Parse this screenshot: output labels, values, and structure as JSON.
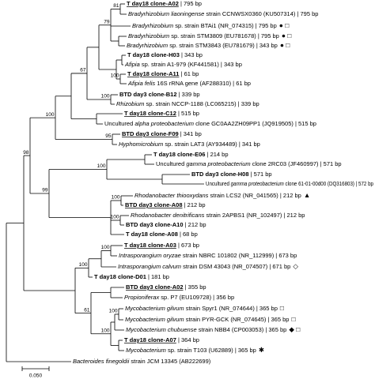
{
  "leaves": [
    {
      "parts": [
        {
          "text": "T day18 clone-A02",
          "style": "bold-underline"
        },
        {
          "text": " | 795 bp",
          "style": "plain"
        }
      ]
    },
    {
      "parts": [
        {
          "text": "Bradyrhizobium liaoningense",
          "style": "italic"
        },
        {
          "text": " strain CCNWSX0360 (KU507314) | 795 bp",
          "style": "plain"
        }
      ]
    },
    {
      "parts": [
        {
          "text": "Bradyrhizobium",
          "style": "italic"
        },
        {
          "text": " sp. strain BTAi1 (NR_074315) | 795 bp",
          "style": "plain"
        }
      ],
      "symbols": "● □"
    },
    {
      "parts": [
        {
          "text": "Bradyrhizobium",
          "style": "italic"
        },
        {
          "text": " sp. strain STM3809 (EU781678) | 795 bp",
          "style": "plain"
        }
      ],
      "symbols": "● □"
    },
    {
      "parts": [
        {
          "text": "Bradyrhizobium",
          "style": "italic"
        },
        {
          "text": " sp. strain STM3843 (EU781679) | 343 bp",
          "style": "plain"
        }
      ],
      "symbols": "● □"
    },
    {
      "parts": [
        {
          "text": "T day18 clone-H03",
          "style": "bold"
        },
        {
          "text": " | 343 bp",
          "style": "plain"
        }
      ]
    },
    {
      "parts": [
        {
          "text": "Afipia",
          "style": "italic"
        },
        {
          "text": " sp. strain A1-979 (KF441581) | 343 bp",
          "style": "plain"
        }
      ]
    },
    {
      "parts": [
        {
          "text": "T day18 clone-A11",
          "style": "bold-underline"
        },
        {
          "text": " | 61 bp",
          "style": "plain"
        }
      ]
    },
    {
      "parts": [
        {
          "text": "Afipia felis",
          "style": "italic"
        },
        {
          "text": " 16S rRNA gene (AF288310) | 61 bp",
          "style": "plain"
        }
      ]
    },
    {
      "parts": [
        {
          "text": "BTD day3 clone-B12",
          "style": "bold"
        },
        {
          "text": " | 339 bp",
          "style": "plain"
        }
      ]
    },
    {
      "parts": [
        {
          "text": "Rhizobium",
          "style": "italic"
        },
        {
          "text": " sp. strain NCCP-1188 (LC065215) | 339 bp",
          "style": "plain"
        }
      ]
    },
    {
      "parts": [
        {
          "text": "T day18 clone-C12",
          "style": "bold-underline"
        },
        {
          "text": " | 515 bp",
          "style": "plain"
        }
      ]
    },
    {
      "parts": [
        {
          "text": "Uncultured ",
          "style": "plain"
        },
        {
          "text": "alpha proteobacterium",
          "style": "italic"
        },
        {
          "text": " clone GC0AA2ZH09PP1 (JQ919505) | 515 bp",
          "style": "plain"
        }
      ]
    },
    {
      "parts": [
        {
          "text": "BTD day3 clone-F09",
          "style": "bold-underline"
        },
        {
          "text": " | 341 bp",
          "style": "plain"
        }
      ]
    },
    {
      "parts": [
        {
          "text": "Hyphomicrobium",
          "style": "italic"
        },
        {
          "text": " sp. strain LAT3 (AY934489) | 341 bp",
          "style": "plain"
        }
      ]
    },
    {
      "parts": [
        {
          "text": "T day18 clone-E06",
          "style": "bold"
        },
        {
          "text": " | 214 bp",
          "style": "plain"
        }
      ]
    },
    {
      "parts": [
        {
          "text": "Uncultured ",
          "style": "plain"
        },
        {
          "text": "gamma proteobacterium",
          "style": "italic"
        },
        {
          "text": " clone 2RC03 (JF460997) | 571 bp",
          "style": "plain"
        }
      ]
    },
    {
      "parts": [
        {
          "text": "BTD day3 clone-H08",
          "style": "bold"
        },
        {
          "text": " | 571 bp",
          "style": "plain"
        }
      ]
    },
    {
      "parts": [
        {
          "text": "Uncultured ",
          "style": "plain"
        },
        {
          "text": "gamma proteobacterium",
          "style": "italic"
        },
        {
          "text": " clone 61-01-00d00 (DQ316803) | 572 bp",
          "style": "plain"
        }
      ]
    },
    {
      "parts": [
        {
          "text": "Rhodanobacter thiooxydans",
          "style": "italic"
        },
        {
          "text": " strain LCS2 (NR_041565) | 212 bp",
          "style": "plain"
        }
      ],
      "symbols": "▲"
    },
    {
      "parts": [
        {
          "text": "BTD day3 clone-A08",
          "style": "bold-underline"
        },
        {
          "text": " | 212 bp",
          "style": "plain"
        }
      ]
    },
    {
      "parts": [
        {
          "text": "Rhodanobacter denitrificans",
          "style": "italic"
        },
        {
          "text": " strain 2APBS1 (NR_102497) | 212 bp",
          "style": "plain"
        }
      ]
    },
    {
      "parts": [
        {
          "text": "BTD day3 clone-A10",
          "style": "bold"
        },
        {
          "text": " | 212 bp",
          "style": "plain"
        }
      ]
    },
    {
      "parts": [
        {
          "text": "T day18 clone-A08",
          "style": "bold"
        },
        {
          "text": " | 68 bp",
          "style": "plain"
        }
      ]
    },
    {
      "parts": [
        {
          "text": "T day18 clone-A03",
          "style": "bold-underline"
        },
        {
          "text": " | 673 bp",
          "style": "plain"
        }
      ]
    },
    {
      "parts": [
        {
          "text": "Intrasporangium oryzae",
          "style": "italic"
        },
        {
          "text": " strain NBRC 101802 (NR_112999) | 673 bp",
          "style": "plain"
        }
      ]
    },
    {
      "parts": [
        {
          "text": "Intrasporangium calvum",
          "style": "italic"
        },
        {
          "text": " strain DSM 43043 (NR_074507) | 671 bp",
          "style": "plain"
        }
      ],
      "symbols": "◇"
    },
    {
      "parts": [
        {
          "text": "T day18 clone-D01",
          "style": "bold"
        },
        {
          "text": " | 181 bp",
          "style": "plain"
        }
      ]
    },
    {
      "parts": [
        {
          "text": "BTD day3 clone-A02",
          "style": "bold-underline"
        },
        {
          "text": " | 355 bp",
          "style": "plain"
        }
      ]
    },
    {
      "parts": [
        {
          "text": "Propioniferax",
          "style": "italic"
        },
        {
          "text": " sp. P7 (EU109728) | 356 bp",
          "style": "plain"
        }
      ]
    },
    {
      "parts": [
        {
          "text": "Mycobacterium gilvum",
          "style": "italic"
        },
        {
          "text": " strain Spyr1 (NR_074644) | 365 bp",
          "style": "plain"
        }
      ],
      "symbols": "□"
    },
    {
      "parts": [
        {
          "text": "Mycobacterium gilvum",
          "style": "italic"
        },
        {
          "text": " strain PYR-GCK (NR_074645) | 365 bp",
          "style": "plain"
        }
      ],
      "symbols": "□"
    },
    {
      "parts": [
        {
          "text": "Mycobacterium chubuense",
          "style": "italic"
        },
        {
          "text": " strain NBB4 (CP003053) | 365 bp",
          "style": "plain"
        }
      ],
      "symbols": "◆ □"
    },
    {
      "parts": [
        {
          "text": "T day18 clone-A07",
          "style": "bold-underline"
        },
        {
          "text": " | 364 bp",
          "style": "plain"
        }
      ]
    },
    {
      "parts": [
        {
          "text": "Mycobacterium",
          "style": "italic"
        },
        {
          "text": " sp. strain T103 (U62889) | 365 bp",
          "style": "plain"
        }
      ],
      "symbols": "✱"
    },
    {
      "parts": [
        {
          "text": "Bacteroides finegoldii",
          "style": "italic"
        },
        {
          "text": " strain JCM 13345 (AB222699)",
          "style": "plain"
        }
      ]
    }
  ],
  "bootstrap_values": [
    "81",
    "79",
    "100",
    "100",
    "67",
    "100",
    "95",
    "98",
    "100",
    "99",
    "100",
    "100",
    "100",
    "100",
    "61",
    "100",
    "100"
  ],
  "scale_bar": "0.050"
}
